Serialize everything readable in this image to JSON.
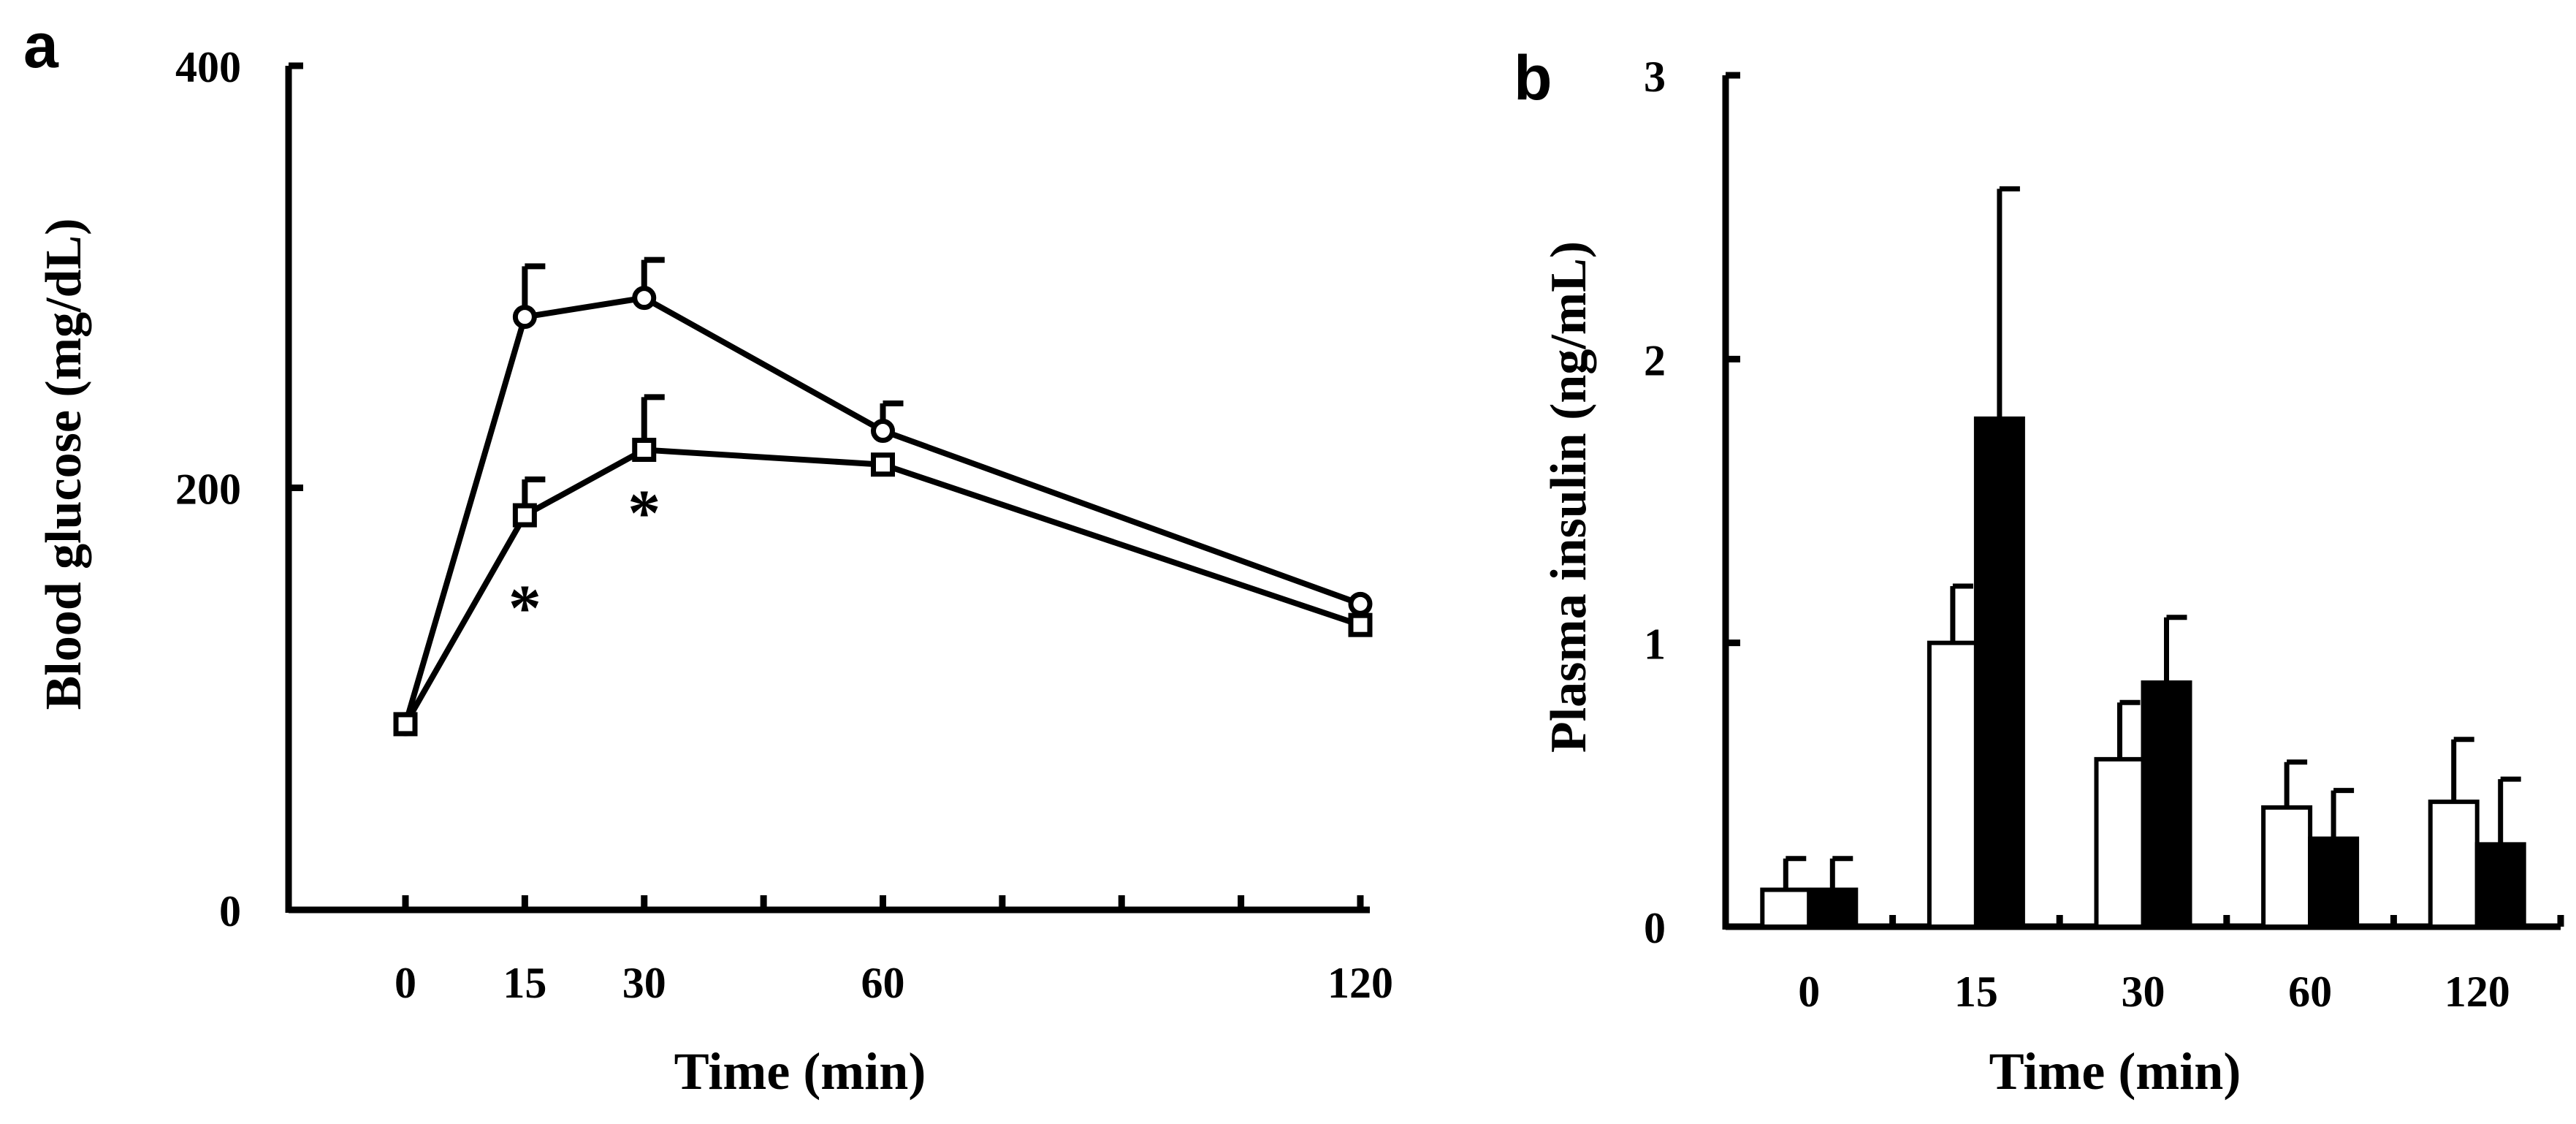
{
  "chart_data": [
    {
      "panel": "a",
      "type": "line",
      "ylabel": "Blood glucose (mg/dL)",
      "xlabel": "Time (min)",
      "ylim": [
        0,
        400
      ],
      "yticks": [
        0,
        200,
        400
      ],
      "x": [
        0,
        15,
        30,
        60,
        120
      ],
      "xtick_labels": [
        "0",
        "15",
        "30",
        "60",
        "120"
      ],
      "series": [
        {
          "name": "circle",
          "marker": "circle",
          "values": [
            88,
            281,
            290,
            227,
            145
          ],
          "error_plus": [
            0,
            24,
            18,
            13,
            0
          ]
        },
        {
          "name": "square",
          "marker": "square",
          "values": [
            88,
            187,
            218,
            211,
            135
          ],
          "error_plus": [
            0,
            17,
            25,
            0,
            0
          ]
        }
      ],
      "annotations": [
        {
          "text": "*",
          "x": 15
        },
        {
          "text": "*",
          "x": 30
        }
      ]
    },
    {
      "panel": "b",
      "type": "bar",
      "ylabel": "Plasma insulin (ng/mL)",
      "xlabel": "Time (min)",
      "ylim": [
        0,
        3
      ],
      "yticks": [
        0,
        1,
        2,
        3
      ],
      "categories": [
        "0",
        "15",
        "30",
        "60",
        "120"
      ],
      "series": [
        {
          "name": "open",
          "color": "#ffffff",
          "values": [
            0.13,
            1.0,
            0.59,
            0.42,
            0.44
          ],
          "error_plus": [
            0.11,
            0.2,
            0.2,
            0.16,
            0.22
          ]
        },
        {
          "name": "filled",
          "color": "#000000",
          "values": [
            0.13,
            1.79,
            0.86,
            0.31,
            0.29
          ],
          "error_plus": [
            0.11,
            0.81,
            0.23,
            0.17,
            0.23
          ]
        }
      ]
    }
  ]
}
